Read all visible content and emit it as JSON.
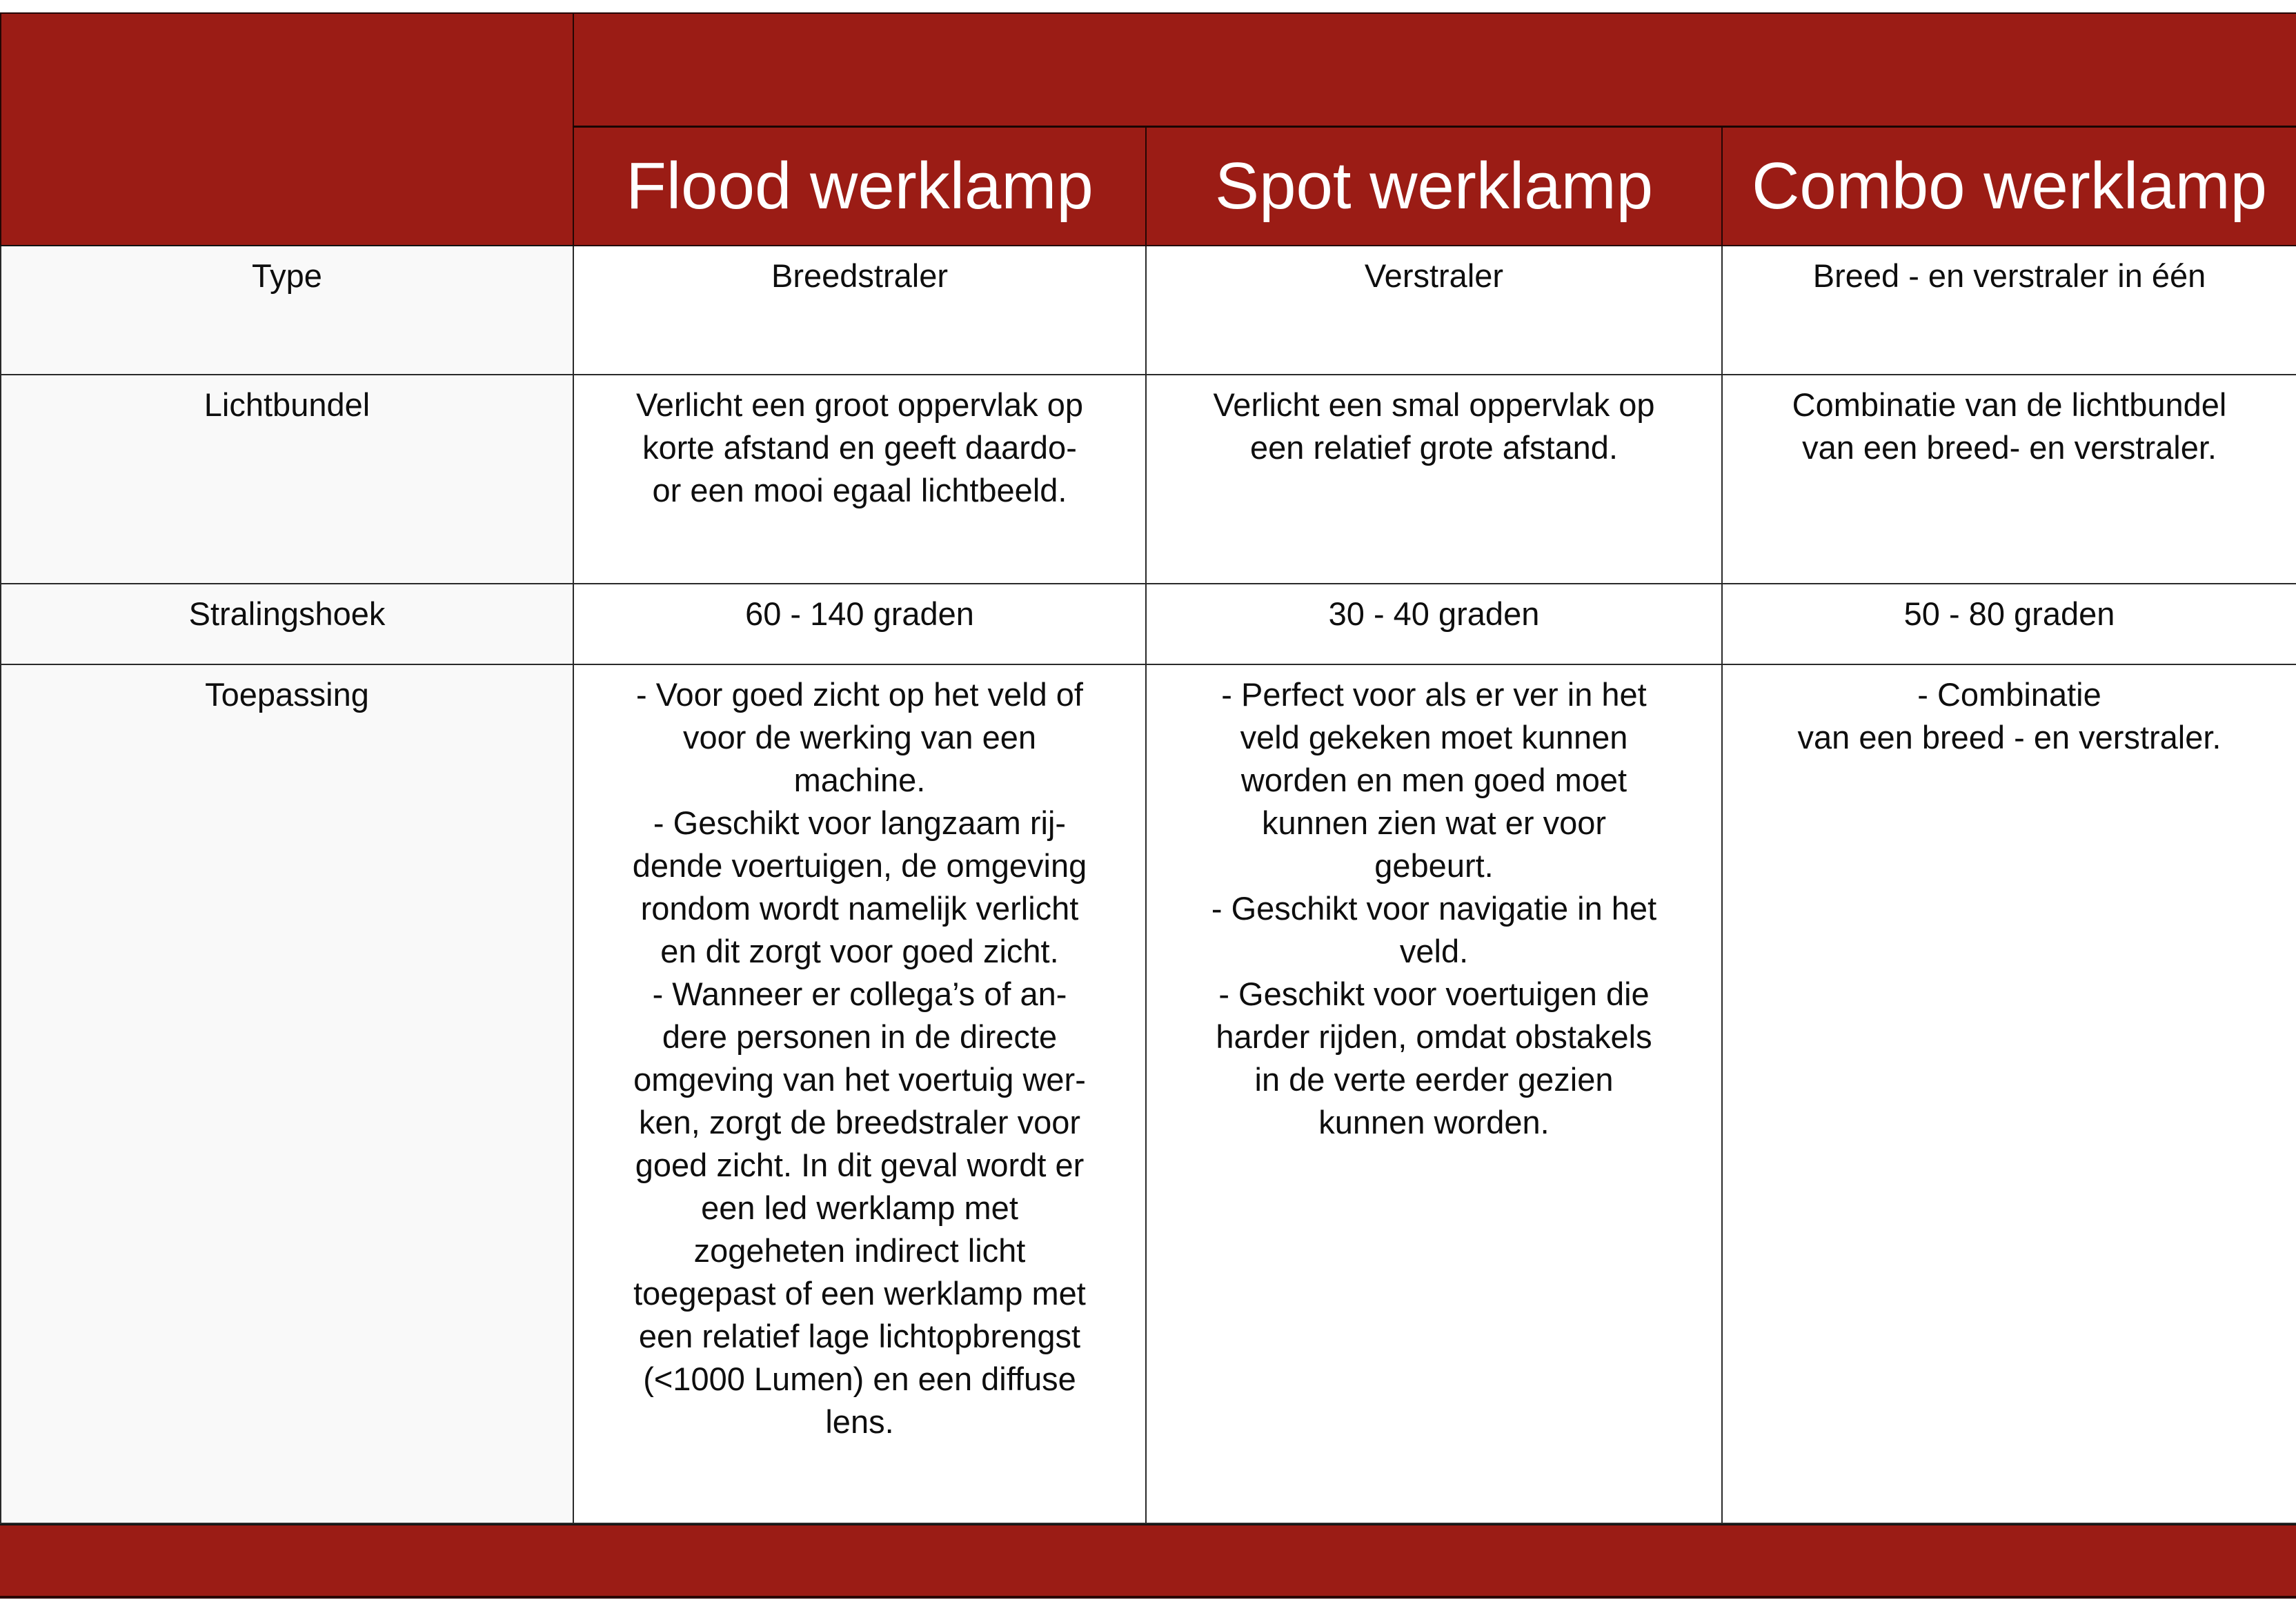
{
  "table": {
    "header_columns": [
      "Flood werklamp",
      "Spot werklamp",
      "Combo werklamp"
    ],
    "rows": [
      {
        "label": "Type",
        "flood": "Breedstraler",
        "spot": "Verstraler",
        "combo": "Breed - en verstraler in één"
      },
      {
        "label": "Lichtbundel",
        "flood": "Verlicht een groot oppervlak op\nkorte afstand en geeft daardo-\nor een mooi egaal lichtbeeld.",
        "spot": "Verlicht een smal oppervlak op\neen relatief grote afstand.",
        "combo": "Combinatie van de lichtbundel\nvan een breed- en verstraler."
      },
      {
        "label": "Stralingshoek",
        "flood": "60 - 140 graden",
        "spot": "30 - 40 graden",
        "combo": "50 - 80 graden"
      },
      {
        "label": "Toepassing",
        "flood": "- Voor goed zicht op het veld of\nvoor de werking van een\nmachine.\n- Geschikt voor langzaam rij-\ndende voertuigen, de omgeving\nrondom wordt namelijk verlicht\nen dit zorgt voor goed zicht.\n- Wanneer er collega’s of an-\ndere personen in de directe\nomgeving van het voertuig wer-\nken, zorgt de breedstraler voor\ngoed zicht. In dit geval wordt er\neen led werklamp met\nzogeheten indirect licht\ntoegepast of een werklamp met\neen relatief lage lichtopbrengst\n(<1000 Lumen) en een diffuse\nlens.",
        "spot": "- Perfect voor als er ver in het\nveld gekeken moet kunnen\nworden en men goed moet\nkunnen zien wat er voor\ngebeurt.\n- Geschikt voor navigatie in het\nveld.\n- Geschikt voor voertuigen die\nharder rijden, omdat obstakels\nin de verte eerder gezien\nkunnen worden.",
        "combo": "- Combinatie\nvan een breed - en verstraler."
      }
    ]
  },
  "colors": {
    "accent_red": "#9b1c15",
    "label_column_bg": "#f9f9f9",
    "border": "#2a2a2a"
  }
}
